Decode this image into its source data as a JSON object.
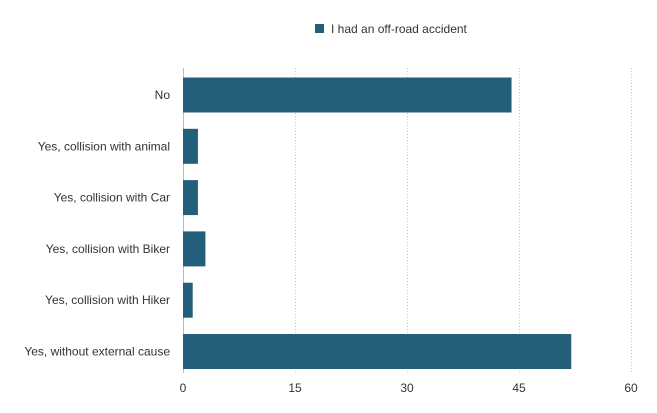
{
  "chart_data": {
    "type": "bar",
    "orientation": "horizontal",
    "categories": [
      "No",
      "Yes, collision with animal",
      "Yes, collision with Car",
      "Yes, collision with Biker",
      "Yes, collision with Hiker",
      "Yes, without external cause"
    ],
    "series": [
      {
        "name": "I had an off-road accident",
        "values": [
          44,
          2,
          2,
          3,
          1.3,
          52
        ],
        "color": "#235f7a"
      }
    ],
    "xlim": [
      0,
      60
    ],
    "xticks": [
      0,
      15,
      30,
      45,
      60
    ],
    "grid": "vertical dotted",
    "legend_position": "top"
  }
}
